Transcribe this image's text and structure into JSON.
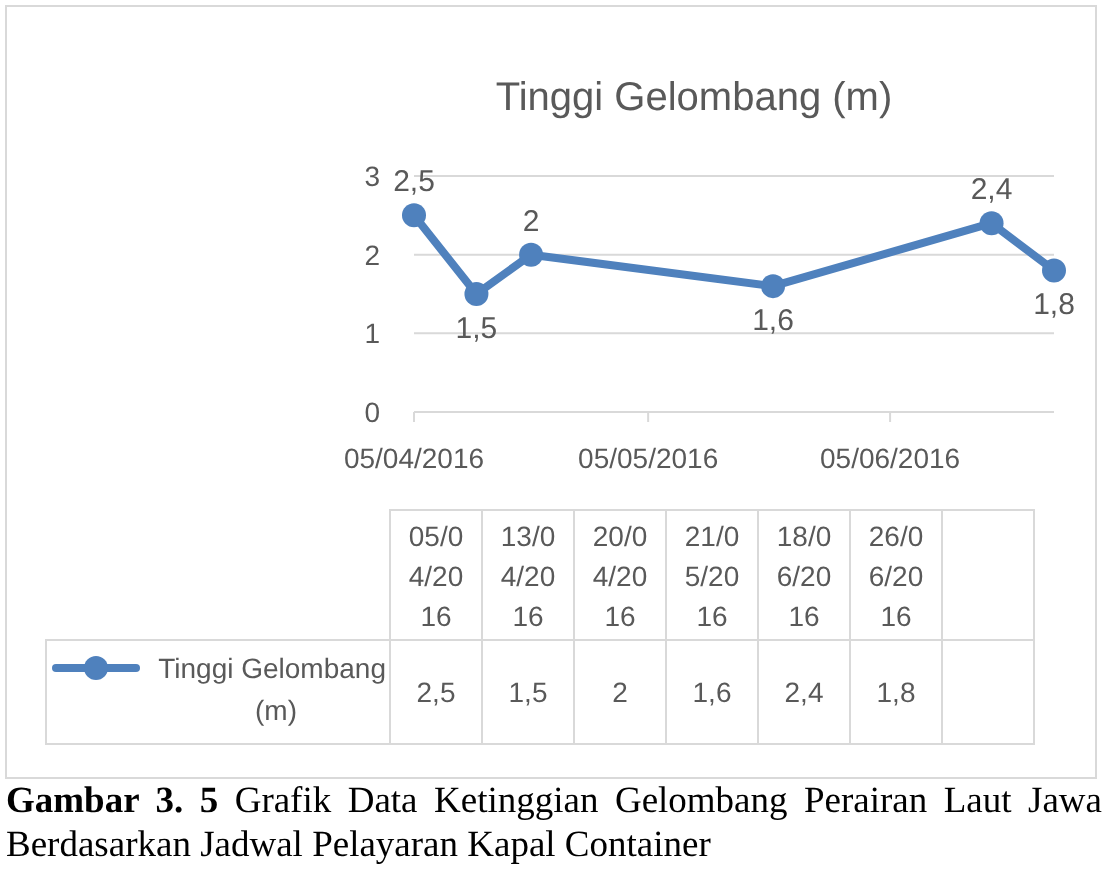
{
  "chart_data": {
    "type": "line",
    "title": "Tinggi Gelombang (m)",
    "x": [
      "2016-04-05",
      "2016-04-13",
      "2016-04-20",
      "2016-05-21",
      "2016-06-18",
      "2016-06-26"
    ],
    "series": [
      {
        "name": "Tinggi Gelombang (m)",
        "color": "#4f81bd",
        "values": [
          2.5,
          1.5,
          2,
          1.6,
          2.4,
          1.8
        ],
        "value_labels": [
          "2,5",
          "1,5",
          "2",
          "1,6",
          "2,4",
          "1,8"
        ]
      }
    ],
    "xlim": [
      "2016-04-05",
      "2016-06-26"
    ],
    "xticks": [
      {
        "value": "2016-04-05",
        "label": "05/04/2016"
      },
      {
        "value": "2016-05-05",
        "label": "05/05/2016"
      },
      {
        "value": "2016-06-05",
        "label": "05/06/2016"
      }
    ],
    "ylim": [
      0,
      3
    ],
    "yticks": [
      0,
      1,
      2,
      3
    ],
    "grid": "y",
    "marker": "circle",
    "line_style": "solid",
    "legend": "bottom",
    "annotations": [
      "Gambar 3. 5",
      "Grafik Data Ketinggian Gelombang Perairan Laut Jawa Berdasarkan Jadwal Pelayaran Kapal Container",
      "05/04/2016",
      "13/04/2016",
      "20/04/2016",
      "21/05/2016",
      "18/06/2016",
      "26/06/2016"
    ]
  }
}
